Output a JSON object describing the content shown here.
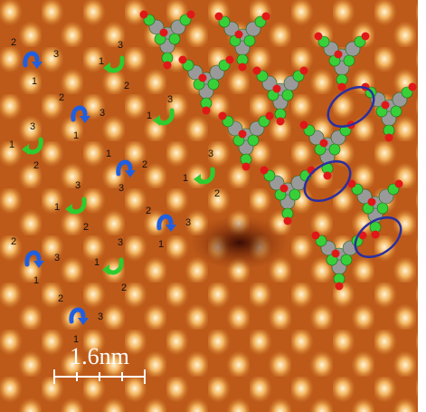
{
  "scale_bar": {
    "label": "1.6nm"
  },
  "arrows": [
    {
      "color": "#1f5fe0",
      "labels": [
        "2",
        "3",
        "1"
      ]
    },
    {
      "color": "#2ecc2e",
      "labels": [
        "3",
        "1",
        "2"
      ]
    },
    {
      "color": "#1f5fe0",
      "labels": [
        "2",
        "3",
        "1"
      ]
    },
    {
      "color": "#2ecc2e",
      "labels": [
        "3",
        "1"
      ]
    },
    {
      "color": "#2ecc2e",
      "labels": [
        "3",
        "1",
        "2"
      ]
    },
    {
      "color": "#1f5fe0",
      "labels": [
        "1",
        "2",
        "3"
      ]
    },
    {
      "color": "#2ecc2e",
      "labels": [
        "3",
        "1",
        "2"
      ]
    },
    {
      "color": "#2ecc2e",
      "labels": [
        "3",
        "1",
        "2"
      ]
    },
    {
      "color": "#1f5fe0",
      "labels": [
        "2",
        "3",
        "1"
      ]
    },
    {
      "color": "#1f5fe0",
      "labels": [
        "2",
        "3",
        "1"
      ]
    },
    {
      "color": "#2ecc2e",
      "labels": [
        "3",
        "1",
        "2"
      ]
    },
    {
      "color": "#1f5fe0",
      "labels": [
        "2",
        "3",
        "1"
      ]
    }
  ]
}
